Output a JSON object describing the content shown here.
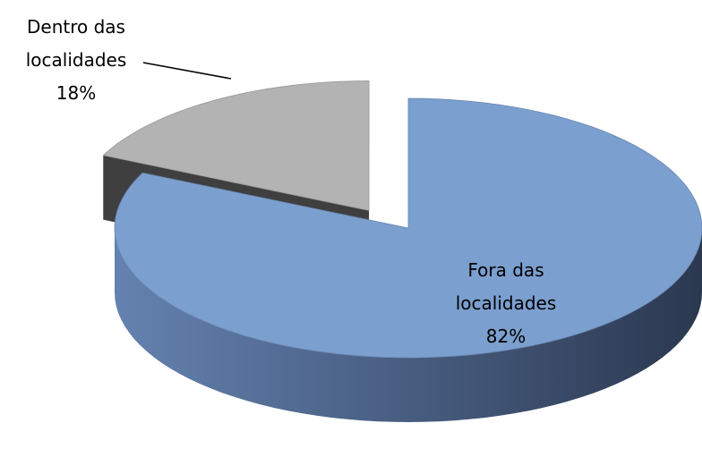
{
  "chart_data": {
    "type": "pie",
    "categories": [
      "Dentro das localidades",
      "Fora das localidades"
    ],
    "values": [
      18,
      82
    ],
    "value_labels": [
      "18%",
      "82%"
    ],
    "colors": [
      "#b3b3b3",
      "#7b9fcf"
    ]
  }
}
